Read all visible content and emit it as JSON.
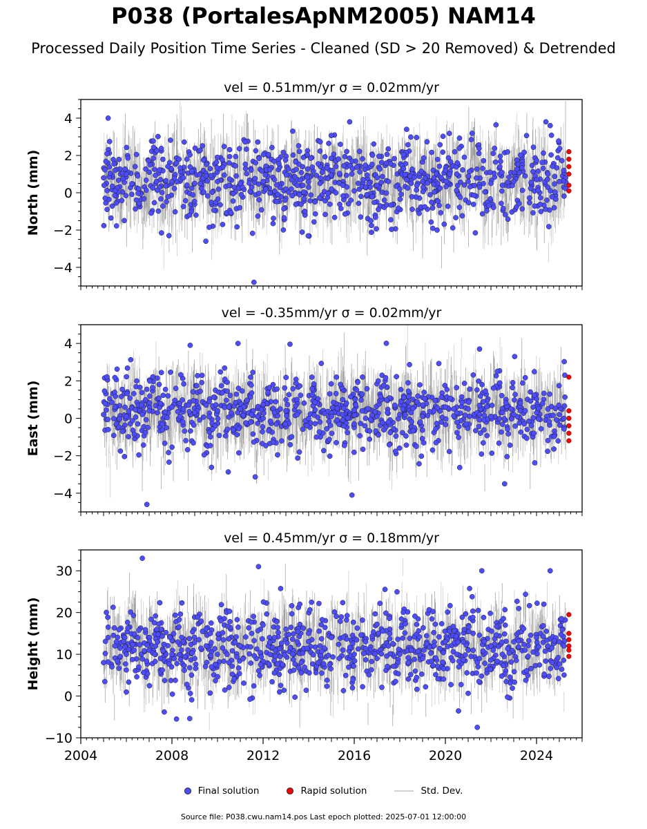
{
  "title": "P038 (PortalesApNM2005) NAM14",
  "subtitle": "Processed Daily Position Time Series - Cleaned (SD > 20 Removed) & Detrended",
  "legend": {
    "final": "Final solution",
    "rapid": "Rapid solution",
    "std": "Std. Dev."
  },
  "footer": "Source file: P038.cwu.nam14.pos  Last epoch plotted: 2025-07-01 12:00:00",
  "colors": {
    "final": "#4d4dff",
    "rapid": "#ff0000",
    "std": "#c8c8c8",
    "std_dark": "#606060"
  },
  "chart_data": [
    {
      "type": "scatter",
      "title": "vel = 0.51mm/yr   σ = 0.02mm/yr",
      "ylabel": "North (mm)",
      "xlim": [
        2004,
        2026
      ],
      "ylim": [
        -5,
        5
      ],
      "yticks": [
        -4,
        -2,
        0,
        2,
        4
      ],
      "xticks": [],
      "series": [
        {
          "name": "Final solution",
          "x": [
            2005.0,
            2005.5,
            2006.0,
            2006.5,
            2007.0,
            2007.5,
            2008.0,
            2008.5,
            2009.0,
            2009.5,
            2010.0,
            2010.5,
            2011.0,
            2011.5,
            2012.0,
            2012.5,
            2013.0,
            2013.5,
            2014.0,
            2014.5,
            2015.0,
            2015.5,
            2016.0,
            2016.5,
            2017.0,
            2017.5,
            2018.0,
            2018.5,
            2019.0,
            2019.5,
            2020.0,
            2020.5,
            2021.0,
            2021.5,
            2022.0,
            2022.5,
            2023.0,
            2023.5,
            2024.0,
            2024.5,
            2025.0,
            2025.2,
            2005.2,
            2011.6,
            2013.3,
            2015.8,
            2018.3,
            2024.6
          ],
          "y": [
            0.8,
            1.2,
            1.0,
            0.9,
            1.1,
            0.7,
            0.6,
            0.8,
            0.5,
            0.9,
            0.6,
            0.4,
            0.5,
            0.3,
            0.6,
            0.7,
            0.2,
            0.4,
            0.3,
            0.5,
            0.2,
            0.4,
            0.1,
            0.3,
            0.4,
            0.6,
            0.2,
            0.5,
            0.6,
            0.8,
            1.2,
            1.0,
            0.6,
            0.3,
            0.5,
            0.4,
            0.6,
            0.9,
            0.7,
            1.0,
            0.6,
            1.2,
            4.0,
            -4.8,
            3.3,
            3.8,
            3.4,
            3.6
          ]
        },
        {
          "name": "Rapid solution",
          "x": [
            2025.42,
            2025.42,
            2025.42,
            2025.42,
            2025.42,
            2025.42
          ],
          "y": [
            2.2,
            1.8,
            1.4,
            1.0,
            0.4,
            0.1
          ]
        }
      ]
    },
    {
      "type": "scatter",
      "title": "vel = -0.35mm/yr   σ = 0.02mm/yr",
      "ylabel": "East (mm)",
      "xlim": [
        2004,
        2026
      ],
      "ylim": [
        -5,
        5
      ],
      "yticks": [
        -4,
        -2,
        0,
        2,
        4
      ],
      "xticks": [],
      "series": [
        {
          "name": "Final solution",
          "x": [
            2005.0,
            2005.5,
            2006.0,
            2006.5,
            2007.0,
            2007.5,
            2008.0,
            2008.5,
            2009.0,
            2009.5,
            2010.0,
            2010.5,
            2011.0,
            2011.5,
            2012.0,
            2012.5,
            2013.0,
            2013.5,
            2014.0,
            2014.5,
            2015.0,
            2015.5,
            2016.0,
            2016.5,
            2017.0,
            2017.5,
            2018.0,
            2018.5,
            2019.0,
            2019.5,
            2020.0,
            2020.5,
            2021.0,
            2021.5,
            2022.0,
            2022.5,
            2023.0,
            2023.5,
            2024.0,
            2024.5,
            2025.0,
            2025.2,
            2006.9,
            2008.8,
            2010.9,
            2015.9,
            2021.5,
            2022.6
          ],
          "y": [
            0.2,
            0.6,
            0.1,
            -0.3,
            0.4,
            0.8,
            0.6,
            0.5,
            0.3,
            0.7,
            0.4,
            0.6,
            0.5,
            0.2,
            0.0,
            0.3,
            0.4,
            0.2,
            0.0,
            -0.2,
            0.1,
            -0.1,
            -0.3,
            0.0,
            0.1,
            -0.2,
            0.2,
            0.3,
            0.1,
            0.4,
            0.6,
            0.3,
            0.5,
            0.2,
            0.1,
            0.3,
            0.2,
            0.4,
            0.3,
            0.5,
            0.2,
            0.0,
            -4.6,
            3.9,
            4.0,
            -4.1,
            3.7,
            -3.5
          ]
        },
        {
          "name": "Rapid solution",
          "x": [
            2025.42,
            2025.42,
            2025.42,
            2025.42,
            2025.42,
            2025.42
          ],
          "y": [
            2.2,
            0.4,
            0.0,
            -0.4,
            -0.8,
            -1.2
          ]
        }
      ]
    },
    {
      "type": "scatter",
      "title": "vel = 0.45mm/yr   σ = 0.18mm/yr",
      "ylabel": "Height (mm)",
      "xlim": [
        2004,
        2026
      ],
      "ylim": [
        -10,
        35
      ],
      "yticks": [
        -10,
        0,
        10,
        20,
        30
      ],
      "xticks": [
        2004,
        2008,
        2012,
        2016,
        2020,
        2024
      ],
      "series": [
        {
          "name": "Final solution",
          "x": [
            2005.0,
            2005.5,
            2006.0,
            2006.5,
            2007.0,
            2007.5,
            2008.0,
            2008.5,
            2009.0,
            2009.5,
            2010.0,
            2010.5,
            2011.0,
            2011.5,
            2012.0,
            2012.5,
            2013.0,
            2013.5,
            2014.0,
            2014.5,
            2015.0,
            2015.5,
            2016.0,
            2016.5,
            2017.0,
            2017.5,
            2018.0,
            2018.5,
            2019.0,
            2019.5,
            2020.0,
            2020.5,
            2021.0,
            2021.5,
            2022.0,
            2022.5,
            2023.0,
            2023.5,
            2024.0,
            2024.5,
            2025.0,
            2025.2,
            2006.7,
            2011.8,
            2021.6,
            2024.6,
            2008.2,
            2021.4
          ],
          "y": [
            8,
            12,
            10,
            14,
            11,
            9,
            10,
            13,
            9,
            12,
            10,
            8,
            12,
            15,
            17,
            14,
            16,
            13,
            15,
            12,
            14,
            11,
            10,
            13,
            9,
            12,
            10,
            11,
            9,
            12,
            13,
            10,
            11,
            9,
            12,
            10,
            13,
            11,
            14,
            12,
            13,
            12,
            33,
            31,
            30,
            30,
            -5.5,
            -7.5
          ]
        },
        {
          "name": "Rapid solution",
          "x": [
            2025.42,
            2025.42,
            2025.42,
            2025.42,
            2025.42,
            2025.42
          ],
          "y": [
            19.5,
            15.0,
            13.5,
            12.0,
            11.0,
            9.5
          ]
        }
      ]
    }
  ]
}
